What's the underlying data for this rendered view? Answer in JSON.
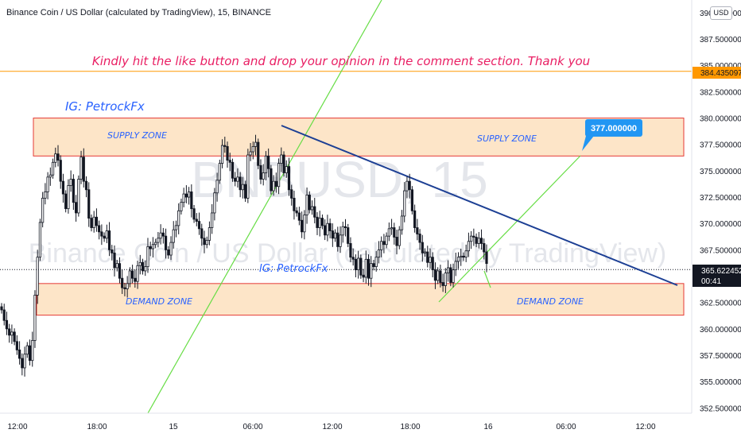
{
  "header": {
    "symbol_title": "Binance Coin / US Dollar (calculated by TradingView), 15, BINANCE",
    "currency_button": "USD"
  },
  "watermark": {
    "ticker": "BNBUSD, 15",
    "description": "Binance Coin / US Dollar (calculated by TradingView)"
  },
  "annotations": {
    "banner": "Kindly hit the like button and drop your opinion in the comment section. Thank you",
    "author_top": "IG: PetrockFx",
    "author_mid": "IG: PetrockFx",
    "supply_left": "SUPPLY ZONE",
    "supply_right": "SUPPLY ZONE",
    "demand_left": "DEMAND ZONE",
    "demand_right": "DEMAND ZONE",
    "target_label": "377.000000"
  },
  "price_scale": {
    "last_price": "365.622452",
    "countdown": "00:41",
    "horizontal_level": "384.435097"
  },
  "colors": {
    "banner_text": "#e91e63",
    "author_text": "#2962ff",
    "zone_fill": "#fde5c8",
    "zone_border": "#e53935",
    "trendline": "#1c3f94",
    "green_line": "#66dd44",
    "level_line": "#ff9800",
    "target_bg": "#2196f3",
    "candle_color": "#131722"
  },
  "chart_data": {
    "type": "candlestick",
    "timeframe": "15",
    "x_ticks": [
      "12:00",
      "18:00",
      "15",
      "06:00",
      "12:00",
      "18:00",
      "16",
      "06:00",
      "12:00"
    ],
    "y_ticks": [
      "390.000000",
      "387.500000",
      "385.000000",
      "382.500000",
      "380.000000",
      "377.500000",
      "375.000000",
      "372.500000",
      "370.000000",
      "367.500000",
      "365.000000",
      "362.500000",
      "360.000000",
      "357.500000",
      "355.000000",
      "352.500000"
    ],
    "ylim": [
      352.0,
      391.2
    ],
    "close_path": [
      361.8,
      360.8,
      360.0,
      359.4,
      359.7,
      358.8,
      358.0,
      357.2,
      356.3,
      357.6,
      358.4,
      357.0,
      358.9,
      363.2,
      366.8,
      370.1,
      372.4,
      373.0,
      374.4,
      374.6,
      375.8,
      376.6,
      376.0,
      374.0,
      372.8,
      371.4,
      373.6,
      374.2,
      372.0,
      371.0,
      374.2,
      376.3,
      374.0,
      373.2,
      370.5,
      369.6,
      370.6,
      369.8,
      369.2,
      368.8,
      368.6,
      369.3,
      367.5,
      367.2,
      365.8,
      366.2,
      364.8,
      363.9,
      363.8,
      364.3,
      365.5,
      364.8,
      364.5,
      366.0,
      366.3,
      365.5,
      365.9,
      367.8,
      367.6,
      368.0,
      368.2,
      368.6,
      369.1,
      368.8,
      367.5,
      367.0,
      368.2,
      369.4,
      369.8,
      371.2,
      372.0,
      372.8,
      372.5,
      373.0,
      371.4,
      370.4,
      370.2,
      369.5,
      368.6,
      368.0,
      368.4,
      369.6,
      371.0,
      372.9,
      374.1,
      375.7,
      377.4,
      377.3,
      376.0,
      375.8,
      374.3,
      374.0,
      374.4,
      373.2,
      373.7,
      372.4,
      376.5,
      376.8,
      377.3,
      377.7,
      375.5,
      374.2,
      374.8,
      376.4,
      375.2,
      373.1,
      374.0,
      373.5,
      375.7,
      376.5,
      374.8,
      375.4,
      373.2,
      372.4,
      371.2,
      371.0,
      370.3,
      369.2,
      370.8,
      372.7,
      371.3,
      371.6,
      370.6,
      369.6,
      370.5,
      369.8,
      368.9,
      370.0,
      369.3,
      368.6,
      369.1,
      367.8,
      368.9,
      369.7,
      369.6,
      368.1,
      366.8,
      366.6,
      365.6,
      366.7,
      365.1,
      364.9,
      366.6,
      364.8,
      366.2,
      365.9,
      366.8,
      367.5,
      368.3,
      368.0,
      368.8,
      369.5,
      369.6,
      368.7,
      367.9,
      369.4,
      370.7,
      373.1,
      374.0,
      373.2,
      371.2,
      369.6,
      369.0,
      368.2,
      367.2,
      367.3,
      366.3,
      366.8,
      365.6,
      364.6,
      365.5,
      364.4,
      364.1,
      365.3,
      365.8,
      364.4,
      365.6,
      366.4,
      366.8,
      366.9,
      366.8,
      367.4,
      368.3,
      368.8,
      368.7,
      368.1,
      368.6,
      368.1,
      367.3,
      366.2
    ],
    "last_price": 365.622452,
    "levels": [
      {
        "name": "horizontal",
        "value": 384.435097
      },
      {
        "name": "supply_zone",
        "from": 376.4,
        "to": 380.0
      },
      {
        "name": "demand_zone",
        "from": 361.3,
        "to": 364.3
      },
      {
        "name": "target",
        "value": 377.0
      }
    ]
  }
}
